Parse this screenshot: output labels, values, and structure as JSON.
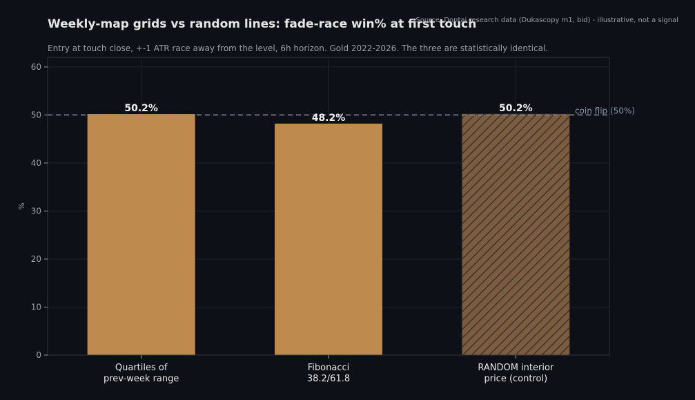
{
  "header": {
    "title": "Weekly-map grids vs random lines: fade-race win% at first touch",
    "subtitle": "Entry at touch close, +-1 ATR race away from the level, 6h horizon. Gold 2022-2026. The three are statistically identical.",
    "source": "Source: Dontai research data (Dukascopy m1, bid) - illustrative, not a signal"
  },
  "chart_data": {
    "type": "bar",
    "title": "Weekly-map grids vs random lines: fade-race win% at first touch",
    "subtitle": "Entry at touch close, +-1 ATR race away from the level, 6h horizon. Gold 2022-2026. The three are statistically identical.",
    "xlabel": "",
    "ylabel": "%",
    "ylim": [
      0,
      62
    ],
    "yticks": [
      0,
      10,
      20,
      30,
      40,
      50,
      60
    ],
    "grid": true,
    "categories": [
      [
        "Quartiles of",
        "prev-week range"
      ],
      [
        "Fibonacci",
        "38.2/61.8"
      ],
      [
        "RANDOM interior",
        "price (control)"
      ]
    ],
    "values": [
      50.2,
      48.2,
      50.2
    ],
    "value_labels": [
      "50.2%",
      "48.2%",
      "50.2%"
    ],
    "bar_styles": [
      "solid",
      "solid",
      "hatched"
    ],
    "reference_line": {
      "value": 50,
      "label": "coin flip (50%)"
    },
    "colors": {
      "background": "#0d1117",
      "bar": "#bf8a4d",
      "bar_control": "#7a5c41",
      "hatch": "#3a2c20",
      "grid": "#1f242b",
      "axis": "#30363d",
      "tick_text": "#9aa0a6",
      "category_text": "#e6e6e6",
      "value_label": "#f0f0f0",
      "reference_line": "#8b949e"
    }
  }
}
